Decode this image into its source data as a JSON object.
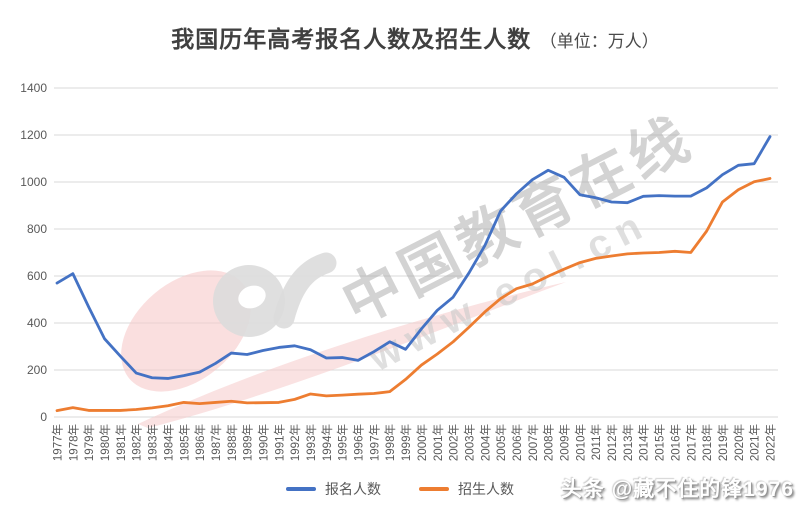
{
  "title": {
    "main": "我国历年高考报名人数及招生人数",
    "unit": "（单位：万人）"
  },
  "chart_data": {
    "type": "line",
    "x": [
      "1977年",
      "1978年",
      "1979年",
      "1980年",
      "1981年",
      "1982年",
      "1983年",
      "1984年",
      "1985年",
      "1986年",
      "1987年",
      "1988年",
      "1989年",
      "1990年",
      "1991年",
      "1992年",
      "1993年",
      "1994年",
      "1995年",
      "1996年",
      "1997年",
      "1998年",
      "1999年",
      "2000年",
      "2001年",
      "2002年",
      "2003年",
      "2004年",
      "2005年",
      "2006年",
      "2007年",
      "2008年",
      "2009年",
      "2010年",
      "2011年",
      "2012年",
      "2013年",
      "2014年",
      "2015年",
      "2016年",
      "2017年",
      "2018年",
      "2019年",
      "2020年",
      "2021年",
      "2022年"
    ],
    "series": [
      {
        "name": "报名人数",
        "color": "#4472C4",
        "values": [
          570,
          610,
          468,
          333,
          259,
          187,
          167,
          164,
          176,
          191,
          228,
          272,
          266,
          283,
          296,
          303,
          286,
          251,
          253,
          241,
          278,
          320,
          288,
          375,
          454,
          510,
          613,
          729,
          877,
          950,
          1010,
          1050,
          1020,
          946,
          933,
          915,
          912,
          939,
          942,
          940,
          940,
          975,
          1031,
          1071,
          1078,
          1193
        ]
      },
      {
        "name": "招生人数",
        "color": "#ED7D31",
        "values": [
          27,
          40,
          28,
          28,
          28,
          32,
          39,
          48,
          62,
          57,
          62,
          67,
          60,
          61,
          62,
          75,
          98,
          90,
          93,
          97,
          100,
          108,
          160,
          221,
          268,
          320,
          382,
          447,
          504,
          546,
          566,
          599,
          629,
          657,
          675,
          685,
          694,
          698,
          700,
          705,
          700,
          791,
          915,
          967,
          1001,
          1015
        ]
      }
    ],
    "ylim": [
      0,
      1400
    ],
    "ystep": 200,
    "grid": true,
    "legend_position": "bottom",
    "gridline_color": "#d9d9d9",
    "tick_label_color": "#595959"
  },
  "watermark": {
    "site_name": "中国教育在线",
    "site_url": "www.eol.cn",
    "logo_pink": "#f6caca",
    "logo_gray": "#dcdcdc",
    "byline": "头条 @藏不住的锋1976"
  }
}
